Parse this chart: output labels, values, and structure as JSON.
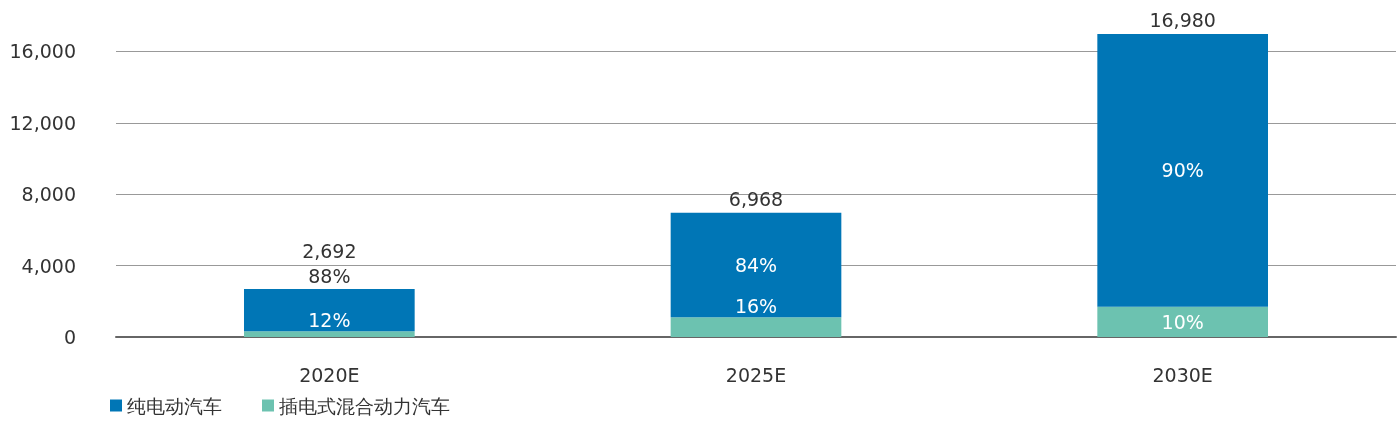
{
  "chart_data": {
    "type": "bar",
    "stacked": true,
    "categories": [
      "2020E",
      "2025E",
      "2030E"
    ],
    "series": [
      {
        "name": "插电式混合动力汽车",
        "color": "#6cc2b0",
        "values": [
          320,
          1100,
          1700
        ]
      },
      {
        "name": "纯电动汽车",
        "color": "#0076b6",
        "values": [
          2372,
          5868,
          15280
        ]
      }
    ],
    "totals": [
      "2,692",
      "6,968",
      "16,980"
    ],
    "annotations": [
      "12%",
      "88%",
      "16%",
      "84%",
      "10%",
      "90%"
    ],
    "ylim": [
      0,
      16980
    ],
    "yticks": [
      {
        "value": 0,
        "label": "0"
      },
      {
        "value": 4000,
        "label": "4,000"
      },
      {
        "value": 8000,
        "label": "8,000"
      },
      {
        "value": 12000,
        "label": "12,000"
      },
      {
        "value": 16000,
        "label": "16,000"
      }
    ],
    "grid": "y",
    "legend": "bottom left"
  }
}
